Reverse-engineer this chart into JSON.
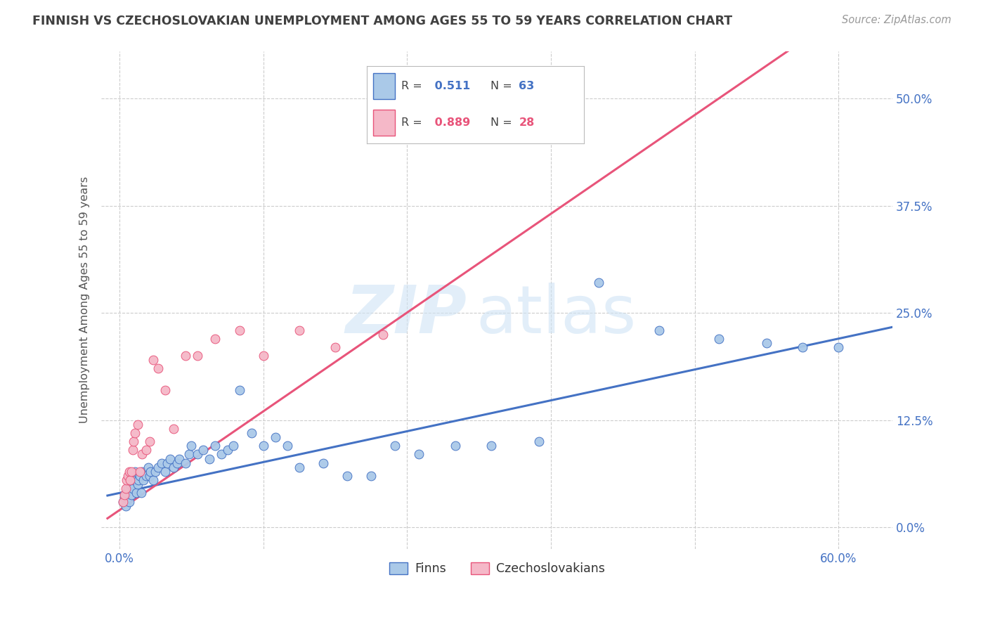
{
  "title": "FINNISH VS CZECHOSLOVAKIAN UNEMPLOYMENT AMONG AGES 55 TO 59 YEARS CORRELATION CHART",
  "source": "Source: ZipAtlas.com",
  "ylabel": "Unemployment Among Ages 55 to 59 years",
  "ytick_values": [
    0.0,
    0.125,
    0.25,
    0.375,
    0.5
  ],
  "ytick_labels": [
    "0.0%",
    "12.5%",
    "25.0%",
    "37.5%",
    "50.0%"
  ],
  "xtick_values": [
    0.0,
    0.12,
    0.24,
    0.36,
    0.48,
    0.6
  ],
  "xtick_labels": [
    "0.0%",
    "",
    "",
    "",
    "",
    "60.0%"
  ],
  "ylim": [
    -0.025,
    0.555
  ],
  "xlim": [
    -0.015,
    0.645
  ],
  "finns_R": "0.511",
  "finns_N": "63",
  "czech_R": "0.889",
  "czech_N": "28",
  "finns_color": "#aac9e8",
  "czech_color": "#f5b8c8",
  "finns_line_color": "#4472c4",
  "czech_line_color": "#e8547a",
  "background_color": "#ffffff",
  "grid_color": "#cccccc",
  "axis_color": "#4472c4",
  "title_color": "#404040",
  "finns_x": [
    0.003,
    0.004,
    0.005,
    0.006,
    0.007,
    0.008,
    0.009,
    0.01,
    0.01,
    0.011,
    0.012,
    0.013,
    0.014,
    0.015,
    0.016,
    0.017,
    0.018,
    0.019,
    0.02,
    0.022,
    0.024,
    0.025,
    0.026,
    0.028,
    0.03,
    0.032,
    0.035,
    0.038,
    0.04,
    0.042,
    0.045,
    0.048,
    0.05,
    0.055,
    0.058,
    0.06,
    0.065,
    0.07,
    0.075,
    0.08,
    0.085,
    0.09,
    0.095,
    0.1,
    0.11,
    0.12,
    0.13,
    0.14,
    0.15,
    0.17,
    0.19,
    0.21,
    0.23,
    0.25,
    0.28,
    0.31,
    0.35,
    0.4,
    0.45,
    0.5,
    0.54,
    0.57,
    0.6
  ],
  "finns_y": [
    0.03,
    0.035,
    0.025,
    0.04,
    0.045,
    0.03,
    0.05,
    0.038,
    0.06,
    0.045,
    0.055,
    0.065,
    0.04,
    0.05,
    0.055,
    0.06,
    0.04,
    0.065,
    0.055,
    0.06,
    0.07,
    0.06,
    0.065,
    0.055,
    0.065,
    0.07,
    0.075,
    0.065,
    0.075,
    0.08,
    0.07,
    0.075,
    0.08,
    0.075,
    0.085,
    0.095,
    0.085,
    0.09,
    0.08,
    0.095,
    0.085,
    0.09,
    0.095,
    0.16,
    0.11,
    0.095,
    0.105,
    0.095,
    0.07,
    0.075,
    0.06,
    0.06,
    0.095,
    0.085,
    0.095,
    0.095,
    0.1,
    0.285,
    0.23,
    0.22,
    0.215,
    0.21,
    0.21
  ],
  "czech_x": [
    0.003,
    0.004,
    0.005,
    0.006,
    0.007,
    0.008,
    0.009,
    0.01,
    0.011,
    0.012,
    0.013,
    0.015,
    0.017,
    0.019,
    0.022,
    0.025,
    0.028,
    0.032,
    0.038,
    0.045,
    0.055,
    0.065,
    0.08,
    0.1,
    0.12,
    0.15,
    0.18,
    0.22
  ],
  "czech_y": [
    0.03,
    0.038,
    0.045,
    0.055,
    0.06,
    0.065,
    0.055,
    0.065,
    0.09,
    0.1,
    0.11,
    0.12,
    0.065,
    0.085,
    0.09,
    0.1,
    0.195,
    0.185,
    0.16,
    0.115,
    0.2,
    0.2,
    0.22,
    0.23,
    0.2,
    0.23,
    0.21,
    0.225
  ]
}
